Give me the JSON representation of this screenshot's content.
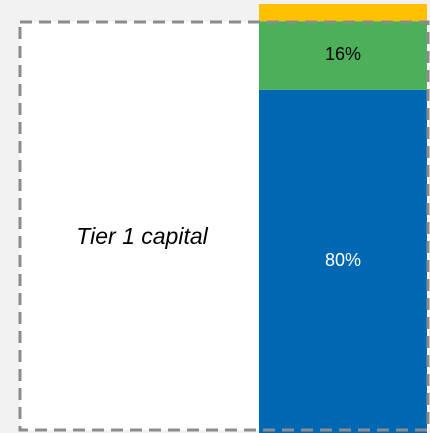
{
  "chart_data": {
    "type": "bar",
    "stacked": true,
    "categories": [
      null
    ],
    "annotation": "Tier 1 capital",
    "ylim": [
      0,
      100
    ],
    "series": [
      {
        "color": "#0068b3",
        "label_color": "#ffffff",
        "values": [
          80
        ],
        "value_labels": [
          "80%"
        ]
      },
      {
        "color": "#4caf5a",
        "label_color": "#000000",
        "values": [
          16
        ],
        "value_labels": [
          "16%"
        ]
      },
      {
        "color": "#ffc000",
        "values": [
          4
        ]
      }
    ]
  }
}
